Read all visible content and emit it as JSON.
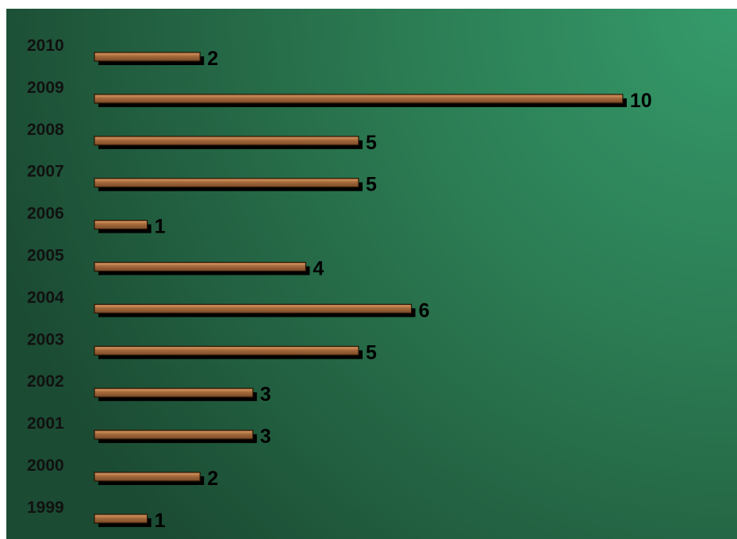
{
  "chart_data": {
    "type": "bar",
    "orientation": "horizontal",
    "categories": [
      "2010",
      "2009",
      "2008",
      "2007",
      "2006",
      "2005",
      "2004",
      "2003",
      "2002",
      "2001",
      "2000",
      "1999"
    ],
    "values": [
      2,
      10,
      5,
      5,
      1,
      4,
      6,
      5,
      3,
      3,
      2,
      1
    ],
    "title": "",
    "xlabel": "",
    "ylabel": "",
    "xlim": [
      0,
      10
    ],
    "grid": false,
    "legend": "none",
    "data_labels": true,
    "colors": {
      "background_dark": "#1b4b33",
      "background_light": "#359b6b",
      "bar_fill": "#a0663a",
      "bar_highlight": "#c98a55",
      "bar_outline": "#2a1606",
      "bar_shadow": "#000000",
      "text": "#111111"
    }
  }
}
